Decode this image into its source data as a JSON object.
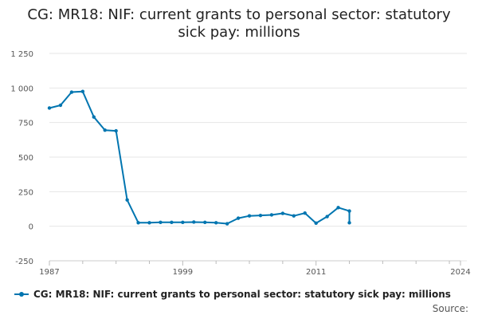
{
  "chart_data": {
    "type": "line",
    "title_lines": [
      "CG: MR18: NIF: current grants to personal sector: statutory",
      "sick pay: millions"
    ],
    "xlabel": "",
    "ylabel": "",
    "x_ticks": [
      1987,
      1999,
      2011,
      2024
    ],
    "x_range": [
      1987,
      2024
    ],
    "y_ticks": [
      1250,
      1000,
      750,
      500,
      250,
      0,
      -250
    ],
    "y_tick_labels": [
      "1 250",
      "1 000",
      "750",
      "500",
      "250",
      "0",
      "-250"
    ],
    "ylim": [
      -250,
      1250
    ],
    "grid": true,
    "legend_position": "bottom-left",
    "color": "#0075b0",
    "series": [
      {
        "name": "CG: MR18: NIF: current grants to personal sector: statutory sick pay: millions",
        "x": [
          1987,
          1988,
          1989,
          1990,
          1991,
          1992,
          1993,
          1994,
          1995,
          1996,
          1997,
          1998,
          1999,
          2000,
          2001,
          2002,
          2003,
          2004,
          2005,
          2006,
          2007,
          2008,
          2009,
          2010,
          2011,
          2012,
          2013,
          2014
        ],
        "values": [
          855,
          875,
          970,
          975,
          790,
          695,
          690,
          190,
          25,
          25,
          28,
          28,
          28,
          30,
          28,
          25,
          18,
          58,
          75,
          78,
          82,
          93,
          75,
          95,
          22,
          70,
          135,
          110
        ]
      },
      {
        "name": "",
        "x": [
          2014
        ],
        "values": [
          25
        ]
      }
    ]
  },
  "source_label": "Source:"
}
